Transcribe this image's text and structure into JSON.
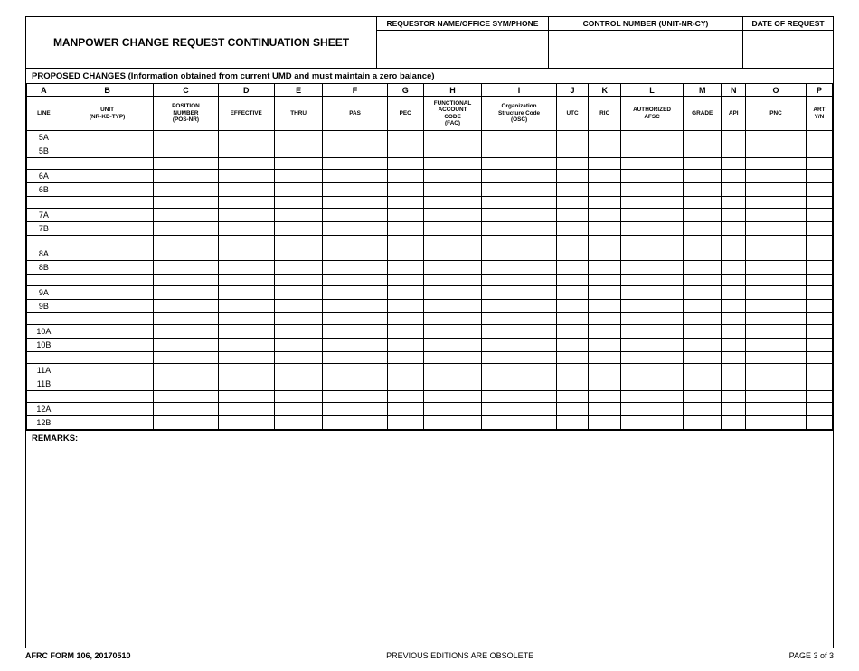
{
  "header": {
    "title": "MANPOWER CHANGE REQUEST CONTINUATION SHEET",
    "requestor_label": "REQUESTOR NAME/OFFICE SYM/PHONE",
    "control_label": "CONTROL NUMBER (UNIT-NR-CY)",
    "date_label": "DATE OF REQUEST",
    "proposed_label": "PROPOSED CHANGES (Information obtained from current UMD and must maintain a zero balance)"
  },
  "columns": {
    "letters": [
      "A",
      "B",
      "C",
      "D",
      "E",
      "F",
      "G",
      "H",
      "I",
      "J",
      "K",
      "L",
      "M",
      "N",
      "O",
      "P"
    ],
    "labels": [
      "LINE",
      "UNIT\n(NR-KD-TYP)",
      "POSITION\nNUMBER\n(POS-NR)",
      "EFFECTIVE",
      "THRU",
      "PAS",
      "PEC",
      "FUNCTIONAL\nACCOUNT\nCODE\n(FAC)",
      "Organization\nStructure Code\n(OSC)",
      "UTC",
      "RIC",
      "AUTHORIZED\nAFSC",
      "GRADE",
      "API",
      "PNC",
      "ART\nY/N"
    ],
    "widths": [
      34,
      92,
      64,
      56,
      48,
      64,
      36,
      58,
      74,
      32,
      32,
      62,
      38,
      24,
      60,
      26
    ]
  },
  "row_groups": [
    [
      "5A",
      "5B"
    ],
    [
      "6A",
      "6B"
    ],
    [
      "7A",
      "7B"
    ],
    [
      "8A",
      "8B"
    ],
    [
      "9A",
      "9B"
    ],
    [
      "10A",
      "10B"
    ],
    [
      "11A",
      "11B"
    ],
    [
      "12A",
      "12B"
    ]
  ],
  "remarks_label": "REMARKS:",
  "footer": {
    "left": "AFRC FORM 106, 20170510",
    "center": "PREVIOUS EDITIONS ARE OBSOLETE",
    "right": "PAGE 3 of 3"
  }
}
